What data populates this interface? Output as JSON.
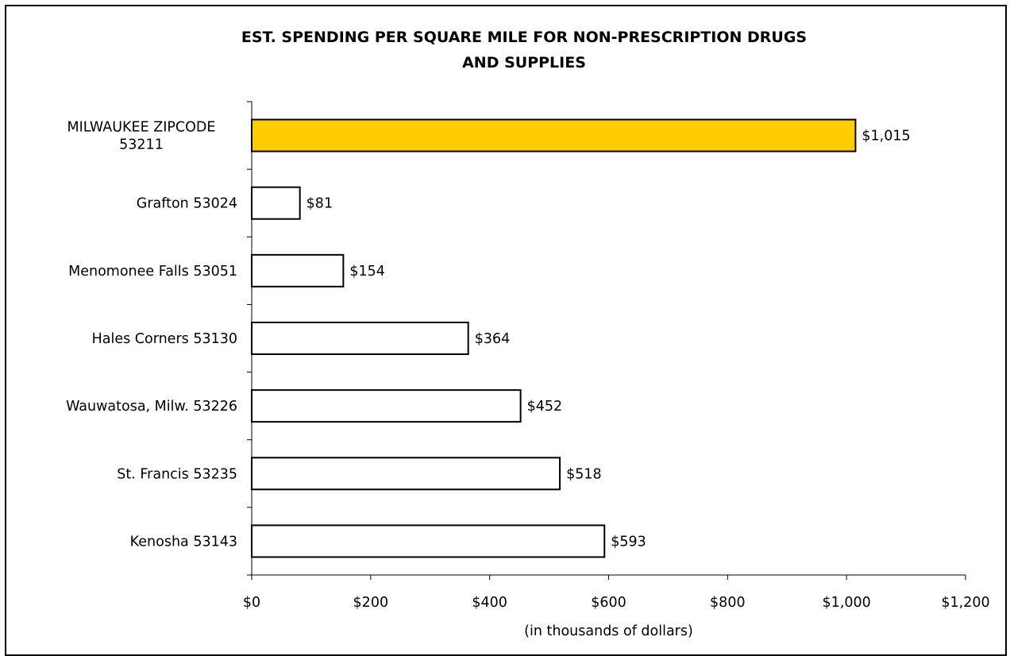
{
  "chart_data": {
    "type": "bar",
    "orientation": "horizontal",
    "title_lines": [
      "EST. SPENDING PER SQUARE MILE FOR NON-PRESCRIPTION DRUGS",
      "AND SUPPLIES"
    ],
    "xlabel": "(in thousands of dollars)",
    "ylabel": "",
    "categories": [
      [
        "MILWAUKEE ZIPCODE",
        "53211"
      ],
      [
        "Grafton 53024"
      ],
      [
        "Menomonee Falls 53051"
      ],
      [
        "Hales Corners 53130"
      ],
      [
        "Wauwatosa, Milw. 53226"
      ],
      [
        "St. Francis 53235"
      ],
      [
        "Kenosha 53143"
      ]
    ],
    "values": [
      1015,
      81,
      154,
      364,
      452,
      518,
      593
    ],
    "data_labels": [
      "$1,015",
      "$81",
      "$154",
      "$364",
      "$452",
      "$518",
      "$593"
    ],
    "bar_colors": [
      "#FFCC00",
      "#FFFFFF",
      "#FFFFFF",
      "#FFFFFF",
      "#FFFFFF",
      "#FFFFFF",
      "#FFFFFF"
    ],
    "bar_outline_color": "#000000",
    "xlim": [
      0,
      1200
    ],
    "x_ticks": [
      0,
      200,
      400,
      600,
      800,
      1000,
      1200
    ],
    "x_tick_labels": [
      "$0",
      "$200",
      "$400",
      "$600",
      "$800",
      "$1,000",
      "$1,200"
    ],
    "grid": false,
    "legend": "none"
  }
}
